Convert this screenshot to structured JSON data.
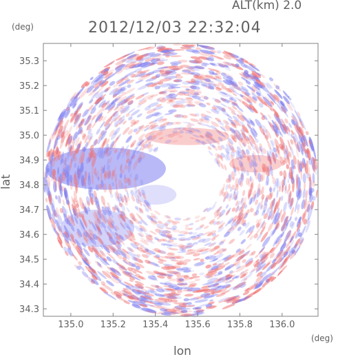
{
  "header": {
    "altitude": "ALT(km) 2.0",
    "timestamp": "2012/12/03 22:32:04"
  },
  "axes": {
    "y_unit": "(deg)",
    "x_unit": "(deg)",
    "ylabel": "lat",
    "xlabel": "lon"
  },
  "chart_data": {
    "type": "heatmap",
    "title": "2012/12/03 22:32:04",
    "xlabel": "lon",
    "ylabel": "lat",
    "xlim": [
      134.87,
      136.17
    ],
    "ylim": [
      34.27,
      35.37
    ],
    "x_ticks": [
      {
        "value": 135.0,
        "label": "135.0"
      },
      {
        "value": 135.2,
        "label": "135.2"
      },
      {
        "value": 135.4,
        "label": "135.4"
      },
      {
        "value": 135.6,
        "label": "135.6"
      },
      {
        "value": 135.8,
        "label": "135.8"
      },
      {
        "value": 136.0,
        "label": "136.0"
      }
    ],
    "y_ticks": [
      {
        "value": 35.3,
        "label": "35.3"
      },
      {
        "value": 35.2,
        "label": "35.2"
      },
      {
        "value": 35.1,
        "label": "35.1"
      },
      {
        "value": 35.0,
        "label": "35.0"
      },
      {
        "value": 34.9,
        "label": "34.9"
      },
      {
        "value": 34.8,
        "label": "34.8"
      },
      {
        "value": 34.7,
        "label": "34.7"
      },
      {
        "value": 34.6,
        "label": "34.6"
      },
      {
        "value": 34.5,
        "label": "34.5"
      },
      {
        "value": 34.4,
        "label": "34.4"
      },
      {
        "value": 34.3,
        "label": "34.3"
      }
    ],
    "radar_center": {
      "lon": 135.52,
      "lat": 34.82
    },
    "radar_range_deg": {
      "lon": 0.65,
      "lat": 0.55
    },
    "grid": false,
    "colors": {
      "positive": "#f07070",
      "negative": "#8080f0",
      "neutral": "#ffffff",
      "axis": "#808080"
    },
    "regions": [
      {
        "name": "west-negative-band",
        "lon": [
          134.88,
          135.45
        ],
        "lat": [
          34.78,
          34.95
        ],
        "sign": -1,
        "strength": 0.55
      },
      {
        "name": "north-positive",
        "lon": [
          135.35,
          135.75
        ],
        "lat": [
          34.96,
          35.03
        ],
        "sign": 1,
        "strength": 0.35
      },
      {
        "name": "northeast-positive",
        "lon": [
          135.75,
          136.0
        ],
        "lat": [
          34.85,
          34.92
        ],
        "sign": 1,
        "strength": 0.35
      },
      {
        "name": "southwest-negative",
        "lon": [
          134.95,
          135.3
        ],
        "lat": [
          34.55,
          34.7
        ],
        "sign": -1,
        "strength": 0.35
      },
      {
        "name": "central-weak-negative",
        "lon": [
          135.3,
          135.5
        ],
        "lat": [
          34.72,
          34.8
        ],
        "sign": -1,
        "strength": 0.25
      }
    ]
  }
}
